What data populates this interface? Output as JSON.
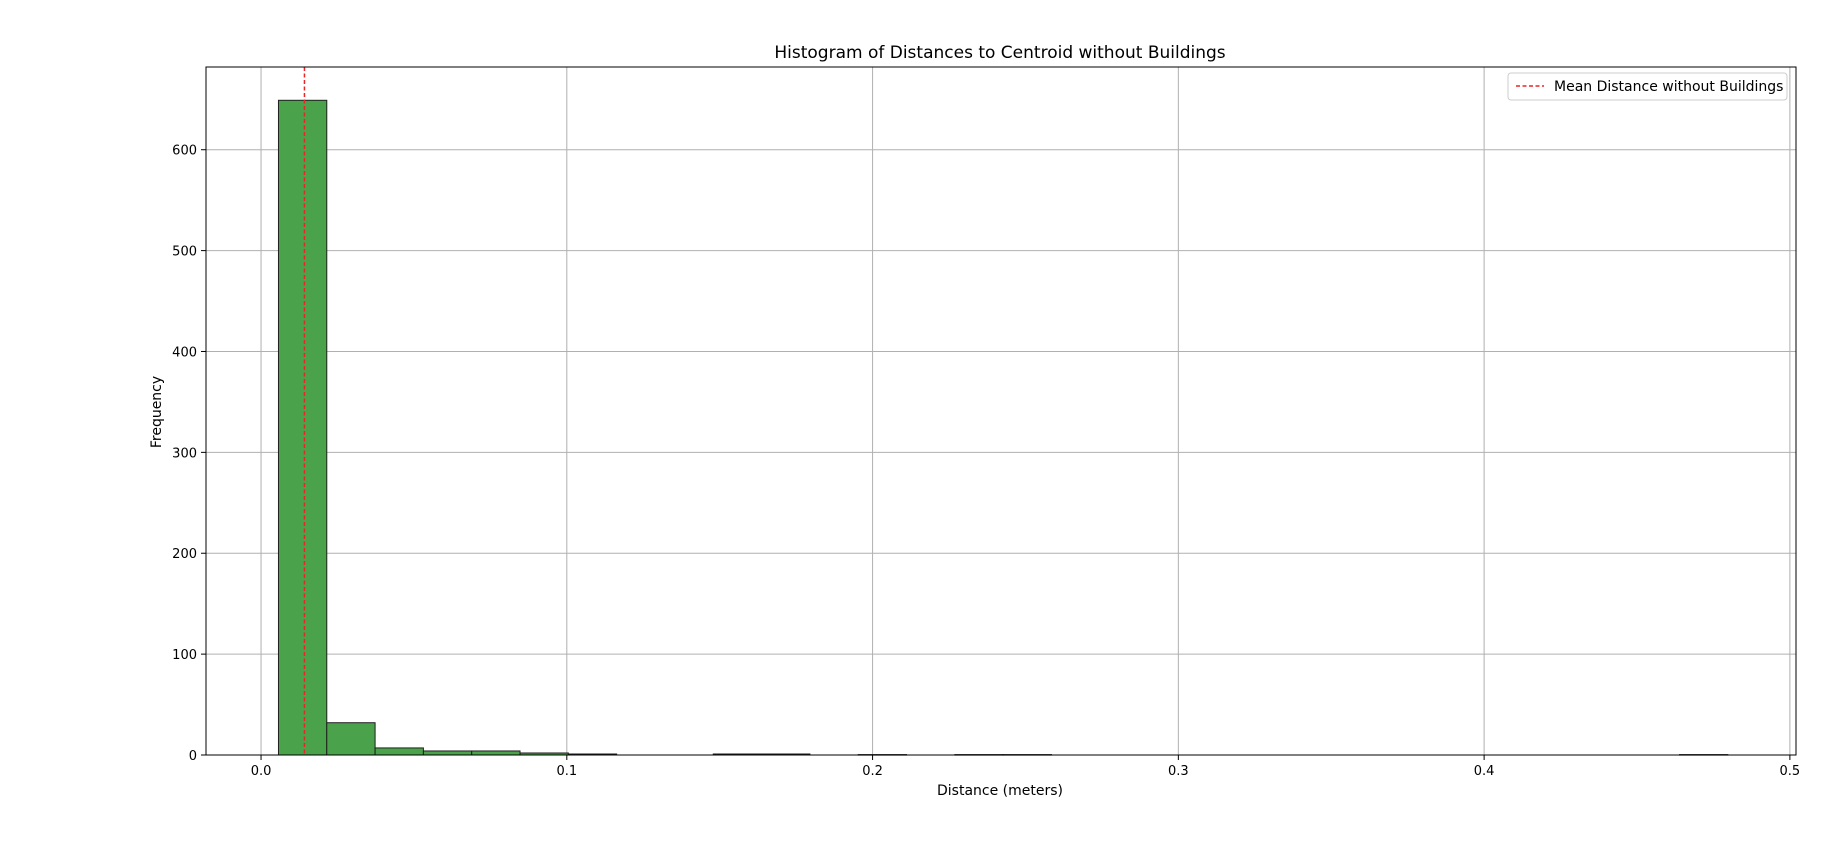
{
  "chart_data": {
    "type": "bar",
    "title": "Histogram of Distances to Centroid without Buildings",
    "xlabel": "Distance (meters)",
    "ylabel": "Frequency",
    "xlim": [
      -0.018,
      0.502
    ],
    "ylim": [
      0,
      682
    ],
    "xticks": [
      0.0,
      0.1,
      0.2,
      0.3,
      0.4,
      0.5
    ],
    "xtick_labels": [
      "0.0",
      "0.1",
      "0.2",
      "0.3",
      "0.4",
      "0.5"
    ],
    "yticks": [
      0,
      100,
      200,
      300,
      400,
      500,
      600
    ],
    "ytick_labels": [
      "0",
      "100",
      "200",
      "300",
      "400",
      "500",
      "600"
    ],
    "grid": true,
    "bar_color": "#4aa34a",
    "bar_edge_color": "#1f1f1f",
    "bins": [
      {
        "x0": 0.0057,
        "x1": 0.0215,
        "count": 649
      },
      {
        "x0": 0.0215,
        "x1": 0.0373,
        "count": 32
      },
      {
        "x0": 0.0373,
        "x1": 0.0531,
        "count": 7
      },
      {
        "x0": 0.0531,
        "x1": 0.0689,
        "count": 4
      },
      {
        "x0": 0.0689,
        "x1": 0.0847,
        "count": 4
      },
      {
        "x0": 0.0847,
        "x1": 0.1005,
        "count": 2
      },
      {
        "x0": 0.1005,
        "x1": 0.1163,
        "count": 1
      },
      {
        "x0": 0.1479,
        "x1": 0.1637,
        "count": 1
      },
      {
        "x0": 0.1637,
        "x1": 0.1795,
        "count": 1
      },
      {
        "x0": 0.1953,
        "x1": 0.2111,
        "count": 0.4
      },
      {
        "x0": 0.2269,
        "x1": 0.2427,
        "count": 0.4
      },
      {
        "x0": 0.2427,
        "x1": 0.2585,
        "count": 0.4
      },
      {
        "x0": 0.4639,
        "x1": 0.4797,
        "count": 0.4
      }
    ],
    "mean_line": {
      "x": 0.0142,
      "color": "#e8262a",
      "label": "Mean Distance without Buildings"
    },
    "legend_position": "upper right"
  }
}
